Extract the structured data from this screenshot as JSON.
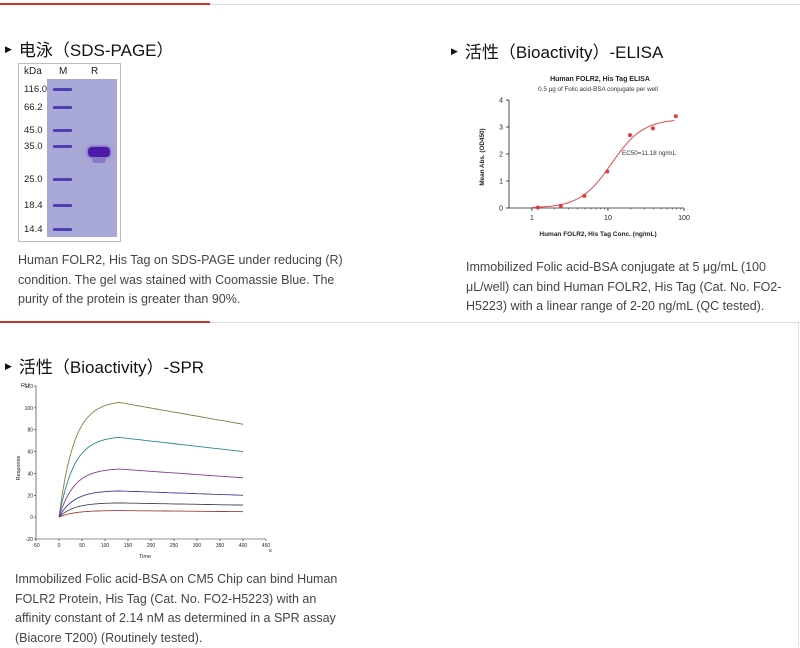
{
  "sds": {
    "title": "电泳（SDS-PAGE）",
    "lanes": [
      "kDa",
      "M",
      "R"
    ],
    "markers": [
      "116.0",
      "66.2",
      "45.0",
      "35.0",
      "25.0",
      "18.4",
      "14.4"
    ],
    "desc": [
      "Human FOLR2, His Tag on SDS-PAGE under reducing (R)",
      "condition. The gel was stained with Coomassie Blue. The",
      "purity of the protein is greater than 90%."
    ]
  },
  "elisa": {
    "title": "活性（Bioactivity）-ELISA",
    "desc": [
      "Immobilized Folic acid-BSA conjugate at 5 μg/mL (100",
      "μL/well) can bind Human FOLR2, His Tag (Cat. No. FO2-",
      "H5223) with a linear range of 2-20 ng/mL (QC tested)."
    ]
  },
  "spr": {
    "title": "活性（Bioactivity）-SPR",
    "desc": [
      "Immobilized Folic acid-BSA on CM5 Chip can bind Human",
      "FOLR2 Protein, His Tag (Cat. No. FO2-H5223) with an",
      "affinity constant of 2.14 nM as determined in a SPR assay",
      "(Biacore T200) (Routinely tested)."
    ]
  },
  "chart_data": [
    {
      "type": "scatter",
      "title": "Human FOLR2, His Tag ELISA",
      "subtitle": "0.5 μg of Folic acid-BSA conjugate per well",
      "xlabel": "Human FOLR2, His Tag Conc. (ng/mL)",
      "ylabel": "Mean Abs. (OD450)",
      "xscale": "log",
      "xlim": [
        0.5,
        100
      ],
      "ylim": [
        0,
        4
      ],
      "xticks": [
        1,
        10,
        100
      ],
      "yticks": [
        0,
        1,
        2,
        3,
        4
      ],
      "annotation": "EC50=11.18 ng/mL",
      "points": {
        "x": [
          1.2,
          2.4,
          4.9,
          9.8,
          19.5,
          39,
          78
        ],
        "y": [
          0.02,
          0.08,
          0.45,
          1.35,
          2.7,
          2.95,
          3.4
        ]
      },
      "fit": {
        "ec50": 11.18,
        "bottom": 0,
        "top": 3.3,
        "hill": 2.1
      },
      "colors": {
        "fit": "#e84a4a",
        "points": "#e33a3a"
      }
    },
    {
      "type": "line",
      "xlabel": "Time",
      "ylabel": "Response",
      "yunit": "RU",
      "xunit": "s",
      "xlim": [
        -50,
        450
      ],
      "ylim": [
        -20,
        120
      ],
      "xticks": [
        -50,
        0,
        50,
        100,
        150,
        200,
        250,
        300,
        350,
        400,
        450
      ],
      "yticks": [
        -20,
        0,
        20,
        40,
        60,
        80,
        100,
        120
      ],
      "association_start": 0,
      "dissociation_start": 130,
      "end": 400,
      "series": [
        {
          "peak": 105,
          "end": 85,
          "color": "#8a7a40"
        },
        {
          "peak": 73,
          "end": 60,
          "color": "#2a8a8a"
        },
        {
          "peak": 44,
          "end": 36,
          "color": "#8a3a9a"
        },
        {
          "peak": 24,
          "end": 20,
          "color": "#3a3aa8"
        },
        {
          "peak": 13,
          "end": 11,
          "color": "#4a4a4a"
        },
        {
          "peak": 6,
          "end": 5,
          "color": "#a04040"
        }
      ]
    }
  ]
}
